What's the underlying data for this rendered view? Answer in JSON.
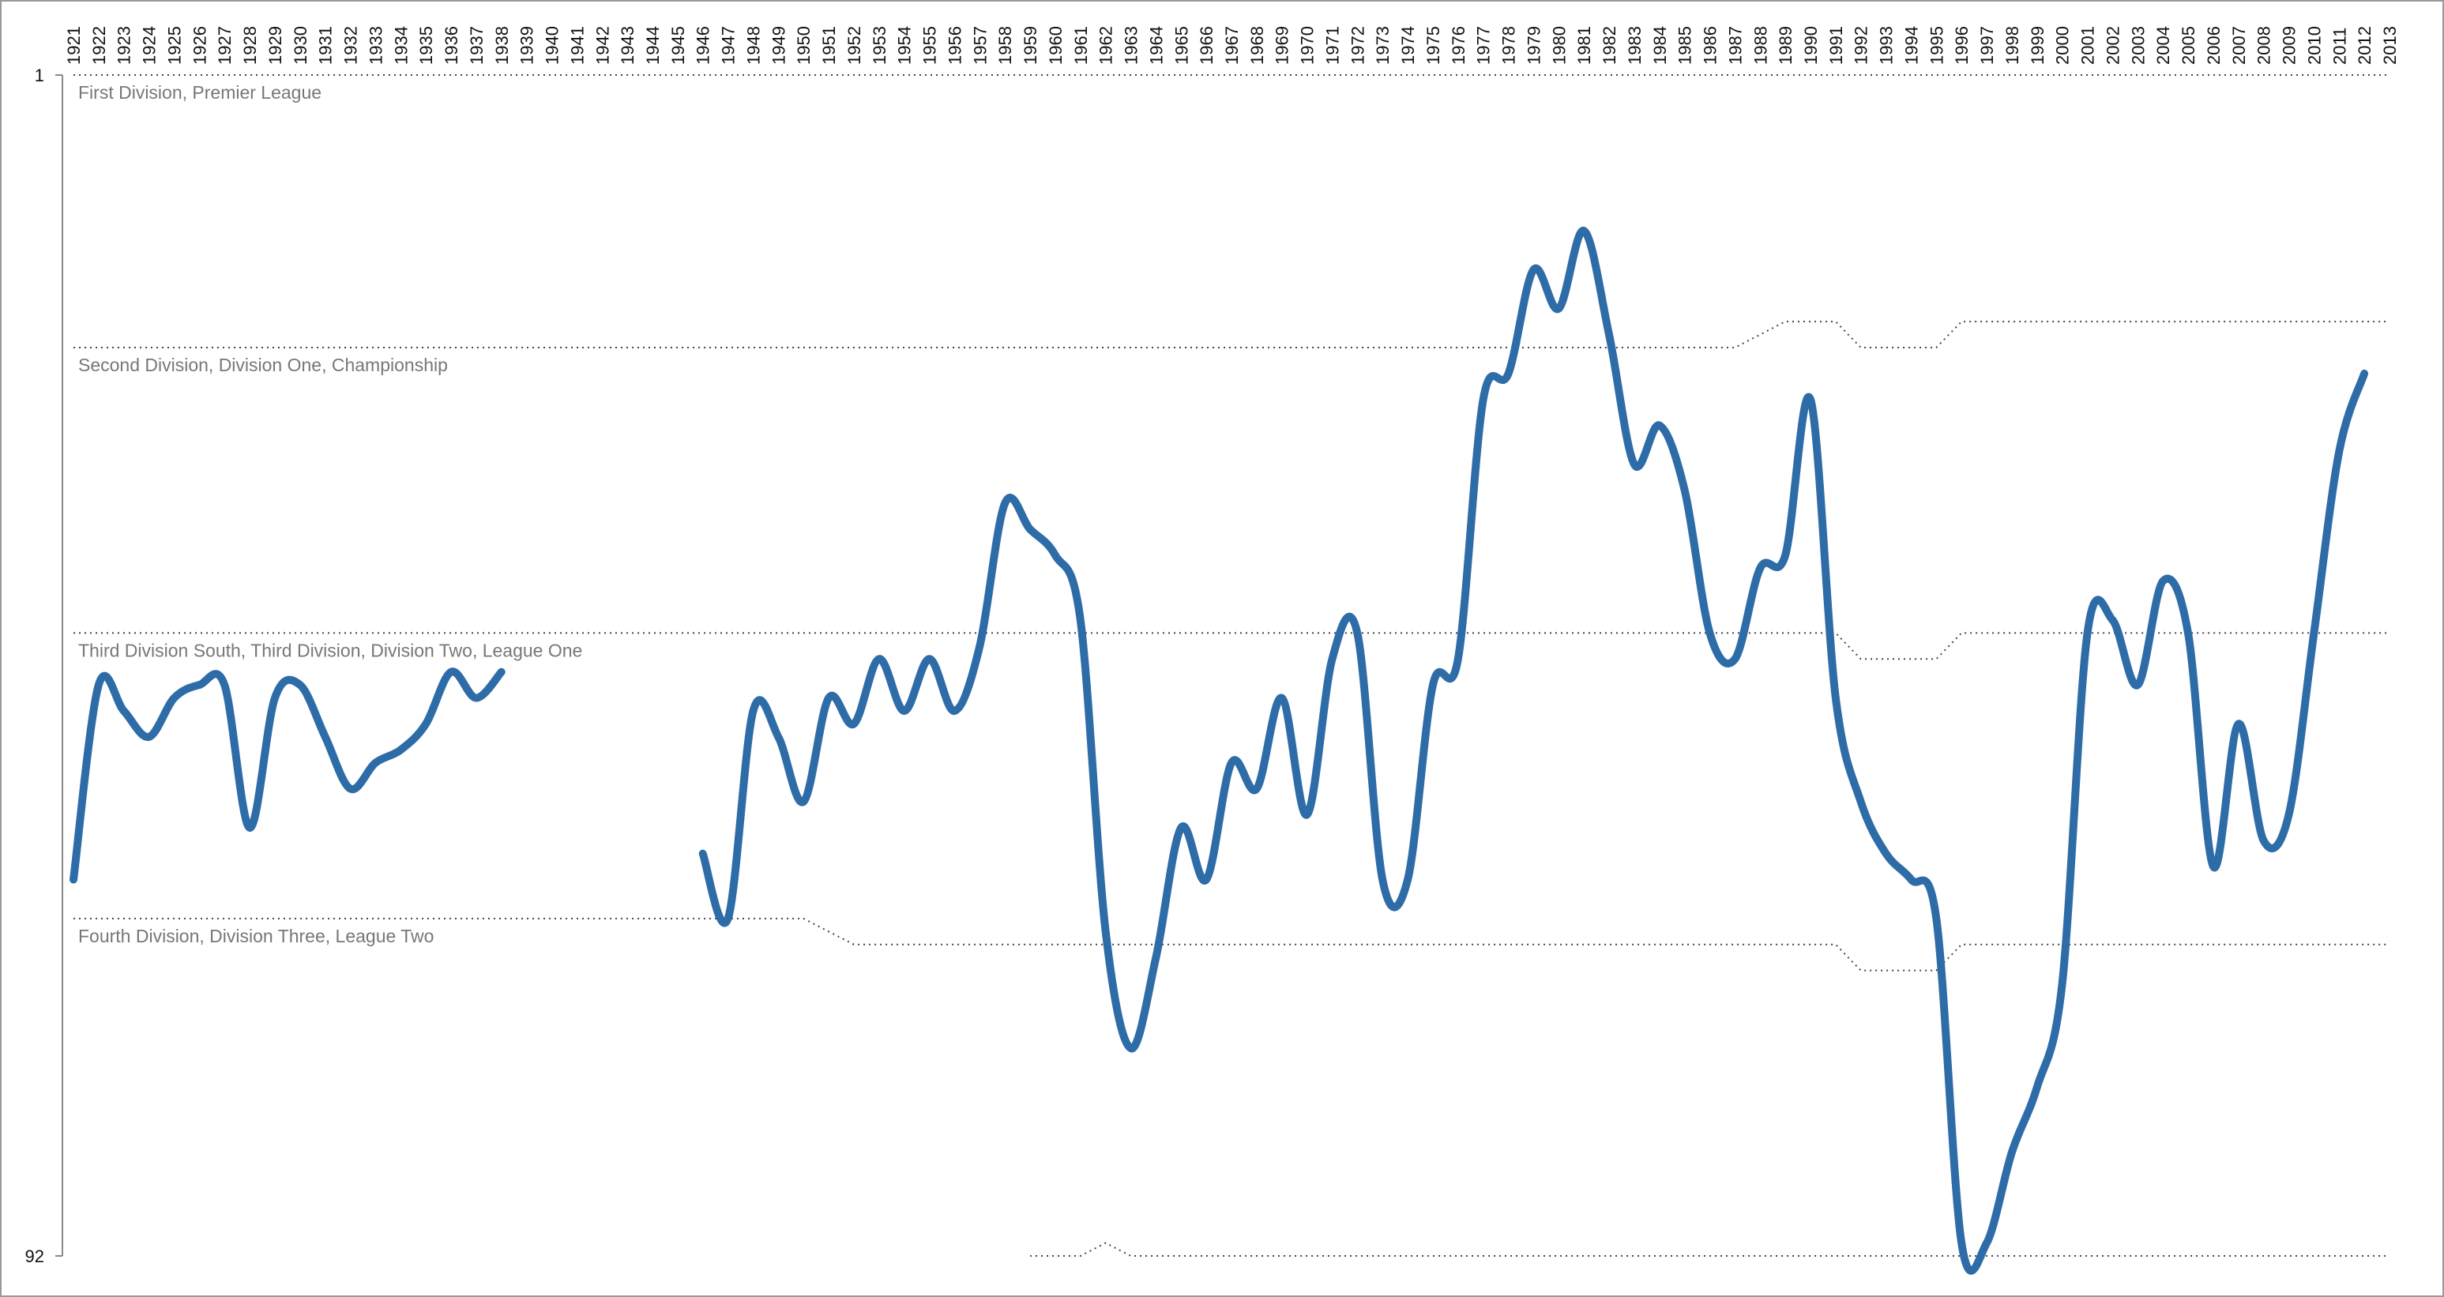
{
  "chart_data": {
    "type": "line",
    "x": [
      1921,
      1922,
      1923,
      1924,
      1925,
      1926,
      1927,
      1928,
      1929,
      1930,
      1931,
      1932,
      1933,
      1934,
      1935,
      1936,
      1937,
      1938,
      1939,
      1940,
      1941,
      1942,
      1943,
      1944,
      1945,
      1946,
      1947,
      1948,
      1949,
      1950,
      1951,
      1952,
      1953,
      1954,
      1955,
      1956,
      1957,
      1958,
      1959,
      1960,
      1961,
      1962,
      1963,
      1964,
      1965,
      1966,
      1967,
      1968,
      1969,
      1970,
      1971,
      1972,
      1973,
      1974,
      1975,
      1976,
      1977,
      1978,
      1979,
      1980,
      1981,
      1982,
      1983,
      1984,
      1985,
      1986,
      1987,
      1988,
      1989,
      1990,
      1991,
      1992,
      1993,
      1994,
      1995,
      1996,
      1997,
      1998,
      1999,
      2000,
      2001,
      2002,
      2003,
      2004,
      2005,
      2006,
      2007,
      2008,
      2009,
      2010,
      2011,
      2012,
      2013
    ],
    "series": [
      {
        "color": "#2e6ca8",
        "values": [
          63,
          48,
          50,
          52,
          49,
          48,
          48,
          59,
          49,
          48,
          52,
          56,
          54,
          53,
          51,
          47,
          49,
          47,
          null,
          null,
          null,
          null,
          null,
          null,
          null,
          61,
          66,
          50,
          52,
          57,
          49,
          51,
          46,
          50,
          46,
          50,
          45,
          34,
          36,
          38,
          43,
          67,
          76,
          69,
          59,
          63,
          54,
          56,
          49,
          58,
          46,
          44,
          63,
          63,
          48,
          46,
          26,
          24,
          16,
          19,
          13,
          21,
          31,
          28,
          33,
          44,
          46,
          39,
          38,
          26,
          49,
          57,
          61,
          63,
          66,
          91,
          91,
          84,
          79,
          71,
          44,
          43,
          48,
          40,
          44,
          62,
          51,
          60,
          58,
          44,
          30,
          24,
          null
        ]
      }
    ],
    "divisions": [
      {
        "label": "First Division, Premier League",
        "values": [
          1,
          1,
          1,
          1,
          1,
          1,
          1,
          1,
          1,
          1,
          1,
          1,
          1,
          1,
          1,
          1,
          1,
          1,
          1,
          1,
          1,
          1,
          1,
          1,
          1,
          1,
          1,
          1,
          1,
          1,
          1,
          1,
          1,
          1,
          1,
          1,
          1,
          1,
          1,
          1,
          1,
          1,
          1,
          1,
          1,
          1,
          1,
          1,
          1,
          1,
          1,
          1,
          1,
          1,
          1,
          1,
          1,
          1,
          1,
          1,
          1,
          1,
          1,
          1,
          1,
          1,
          1,
          1,
          1,
          1,
          1,
          1,
          1,
          1,
          1,
          1,
          1,
          1,
          1,
          1,
          1,
          1,
          1,
          1,
          1,
          1,
          1,
          1,
          1,
          1,
          1,
          1,
          1
        ]
      },
      {
        "label": "Second Division, Division One, Championship",
        "values": [
          22,
          22,
          22,
          22,
          22,
          22,
          22,
          22,
          22,
          22,
          22,
          22,
          22,
          22,
          22,
          22,
          22,
          22,
          22,
          22,
          22,
          22,
          22,
          22,
          22,
          22,
          22,
          22,
          22,
          22,
          22,
          22,
          22,
          22,
          22,
          22,
          22,
          22,
          22,
          22,
          22,
          22,
          22,
          22,
          22,
          22,
          22,
          22,
          22,
          22,
          22,
          22,
          22,
          22,
          22,
          22,
          22,
          22,
          22,
          22,
          22,
          22,
          22,
          22,
          22,
          22,
          22,
          21,
          20,
          20,
          20,
          22,
          22,
          22,
          22,
          20,
          20,
          20,
          20,
          20,
          20,
          20,
          20,
          20,
          20,
          20,
          20,
          20,
          20,
          20,
          20,
          20,
          20
        ]
      },
      {
        "label": "Third Division South, Third Division, Division Two, League One",
        "values": [
          44,
          44,
          44,
          44,
          44,
          44,
          44,
          44,
          44,
          44,
          44,
          44,
          44,
          44,
          44,
          44,
          44,
          44,
          44,
          44,
          44,
          44,
          44,
          44,
          44,
          44,
          44,
          44,
          44,
          44,
          44,
          44,
          44,
          44,
          44,
          44,
          44,
          44,
          44,
          44,
          44,
          44,
          44,
          44,
          44,
          44,
          44,
          44,
          44,
          44,
          44,
          44,
          44,
          44,
          44,
          44,
          44,
          44,
          44,
          44,
          44,
          44,
          44,
          44,
          44,
          44,
          44,
          44,
          44,
          44,
          44,
          46,
          46,
          46,
          46,
          44,
          44,
          44,
          44,
          44,
          44,
          44,
          44,
          44,
          44,
          44,
          44,
          44,
          44,
          44,
          44,
          44,
          44
        ]
      },
      {
        "label": "Fourth Division, Division Three, League Two",
        "values": [
          66,
          66,
          66,
          66,
          66,
          66,
          66,
          66,
          66,
          66,
          66,
          66,
          66,
          66,
          66,
          66,
          66,
          66,
          66,
          66,
          66,
          66,
          66,
          66,
          66,
          66,
          66,
          66,
          66,
          66,
          67,
          68,
          68,
          68,
          68,
          68,
          68,
          68,
          68,
          68,
          68,
          68,
          68,
          68,
          68,
          68,
          68,
          68,
          68,
          68,
          68,
          68,
          68,
          68,
          68,
          68,
          68,
          68,
          68,
          68,
          68,
          68,
          68,
          68,
          68,
          68,
          68,
          68,
          68,
          68,
          68,
          70,
          70,
          70,
          70,
          68,
          68,
          68,
          68,
          68,
          68,
          68,
          68,
          68,
          68,
          68,
          68,
          68,
          68,
          68,
          68,
          68,
          68
        ]
      },
      {
        "values": [
          null,
          null,
          null,
          null,
          null,
          null,
          null,
          null,
          null,
          null,
          null,
          null,
          null,
          null,
          null,
          null,
          null,
          null,
          null,
          null,
          null,
          null,
          null,
          null,
          null,
          null,
          null,
          null,
          null,
          null,
          null,
          null,
          null,
          null,
          null,
          null,
          null,
          null,
          92,
          92,
          92,
          91,
          92,
          92,
          92,
          92,
          92,
          92,
          92,
          92,
          92,
          92,
          92,
          92,
          92,
          92,
          92,
          92,
          92,
          92,
          92,
          92,
          92,
          92,
          92,
          92,
          92,
          92,
          92,
          92,
          92,
          92,
          92,
          92,
          92,
          92,
          92,
          92,
          92,
          92,
          92,
          92,
          92,
          92,
          92,
          92,
          92,
          92,
          92,
          92,
          92,
          92,
          92
        ]
      }
    ],
    "ylim": [
      1,
      92
    ],
    "yticks": [
      1,
      92
    ],
    "y_inverted": true
  }
}
